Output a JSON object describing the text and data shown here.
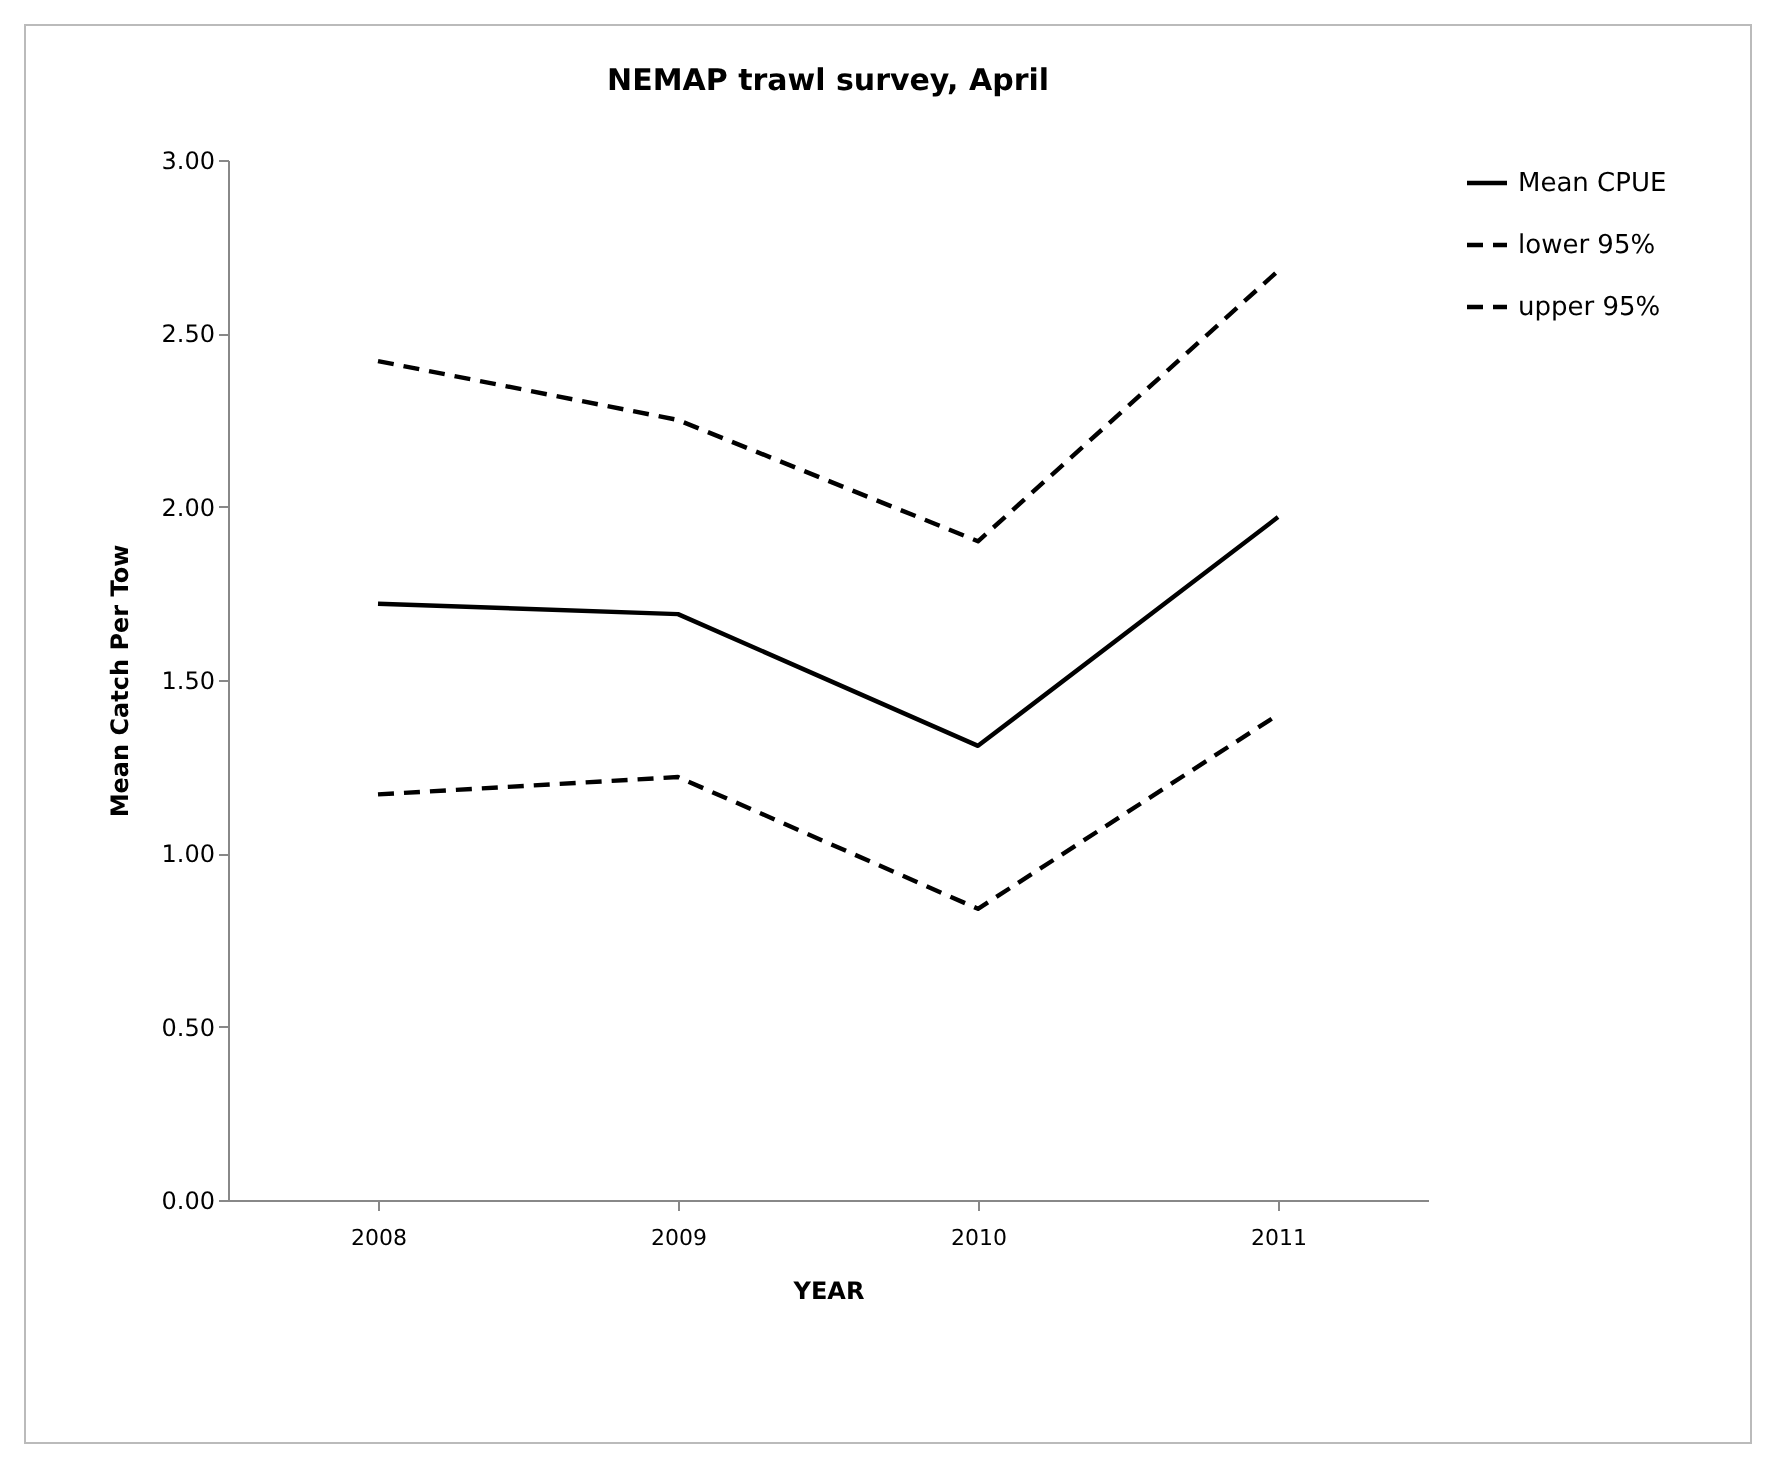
{
  "chart_data": {
    "type": "line",
    "title": "NEMAP trawl survey, April",
    "xlabel": "YEAR",
    "ylabel": "Mean Catch Per Tow",
    "categories": [
      "2008",
      "2009",
      "2010",
      "2011"
    ],
    "series": [
      {
        "name": "Mean CPUE",
        "color": "#000000",
        "line_style": "solid",
        "values": [
          1.72,
          1.69,
          1.31,
          1.97
        ]
      },
      {
        "name": "lower 95%",
        "color": "#000000",
        "line_style": "dashed",
        "values": [
          1.17,
          1.22,
          0.84,
          1.4
        ]
      },
      {
        "name": "upper 95%",
        "color": "#000000",
        "line_style": "dashed",
        "values": [
          2.42,
          2.25,
          1.9,
          2.68
        ]
      }
    ],
    "ylim": [
      0,
      3
    ],
    "yticks": [
      {
        "value": 0,
        "label": "0.00"
      },
      {
        "value": 0.5,
        "label": "0.50"
      },
      {
        "value": 1,
        "label": "1.00"
      },
      {
        "value": 1.5,
        "label": "1.50"
      },
      {
        "value": 2,
        "label": "2.00"
      },
      {
        "value": 2.5,
        "label": "2.50"
      },
      {
        "value": 3,
        "label": "3.00"
      }
    ],
    "grid": false,
    "legend": "right",
    "marker": "none"
  }
}
